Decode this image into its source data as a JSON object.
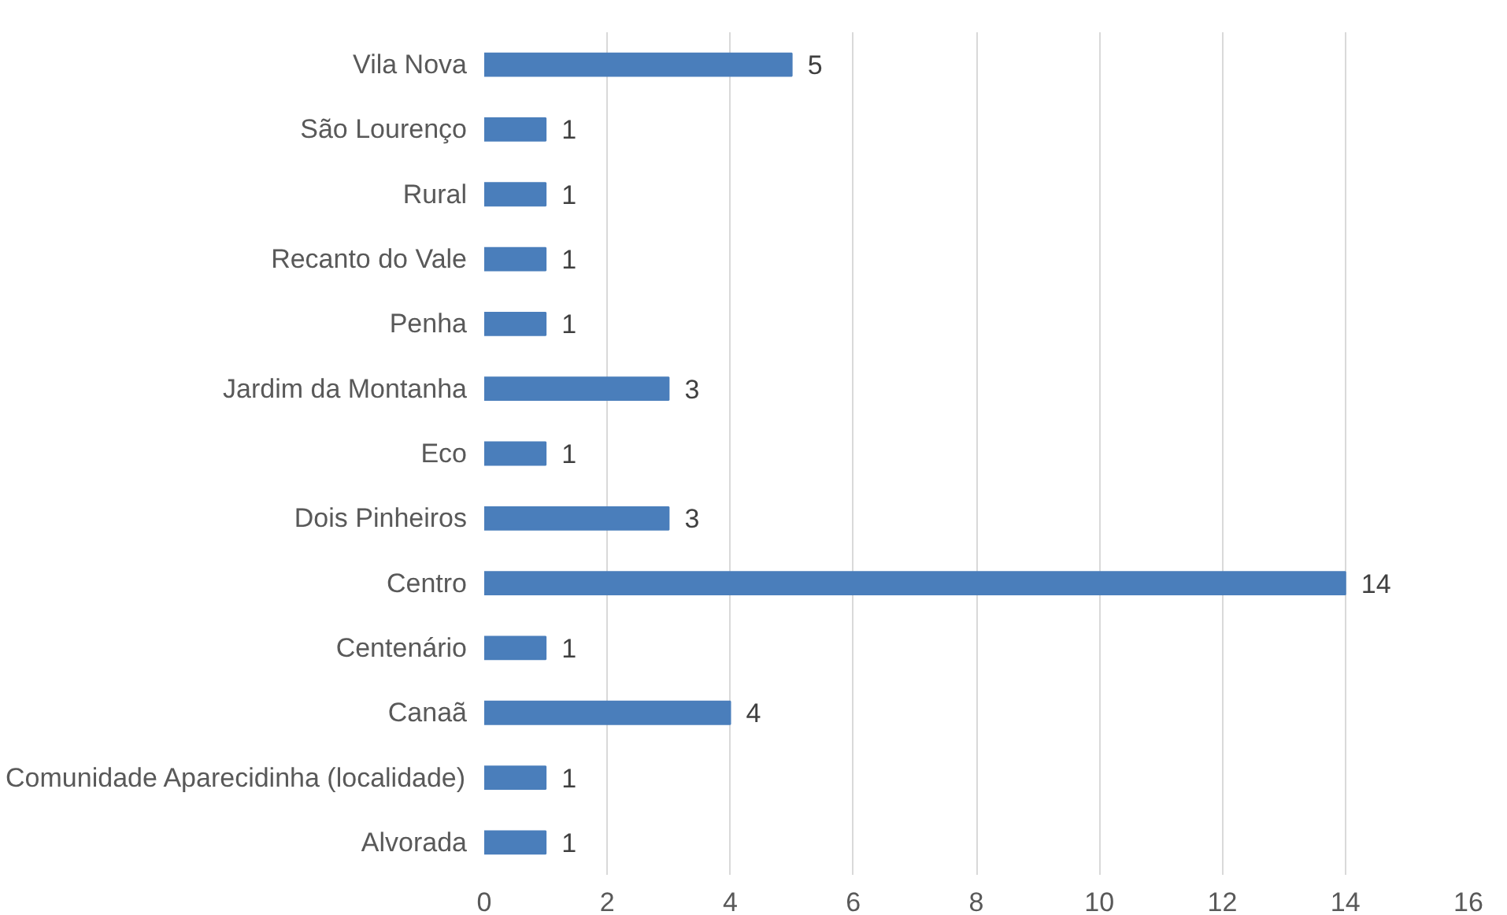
{
  "chart_data": {
    "type": "bar",
    "orientation": "horizontal",
    "categories": [
      "Vila Nova",
      "São Lourenço",
      "Rural",
      "Recanto do Vale",
      "Penha",
      "Jardim da Montanha",
      "Eco",
      "Dois Pinheiros",
      "Centro",
      "Centenário",
      "Canaã",
      "Comunidade Aparecidinha (localidade)",
      "Alvorada"
    ],
    "values": [
      5,
      1,
      1,
      1,
      1,
      3,
      1,
      3,
      14,
      1,
      4,
      1,
      1
    ],
    "color": "#4a7ebb",
    "xlim": [
      0,
      16
    ],
    "xticks": [
      0,
      2,
      4,
      6,
      8,
      10,
      12,
      14,
      16
    ],
    "grid": "x",
    "data_labels": true
  }
}
